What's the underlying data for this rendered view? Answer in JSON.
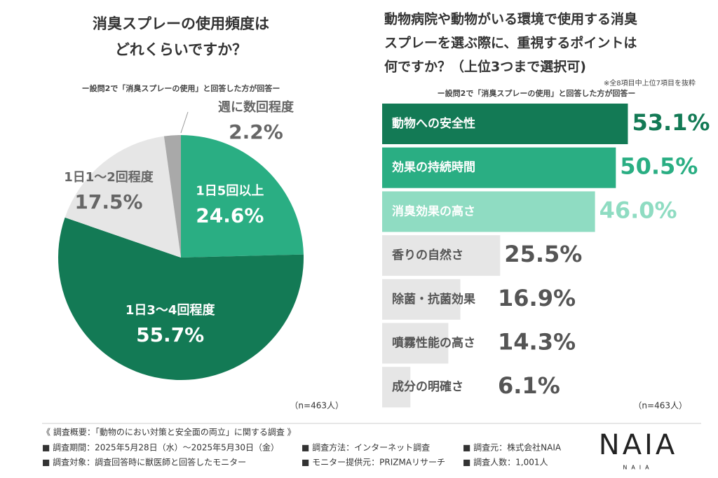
{
  "chart_data": [
    {
      "type": "pie",
      "title": [
        "消臭スプレーの使用頻度は",
        "どれくらいですか？"
      ],
      "subtitle": "ー設問2で「消臭スプレーの使用」と回答した方が回答ー",
      "categories": [
        "1日5回以上",
        "1日3〜4回程度",
        "1日1〜2回程度",
        "週に数回程度"
      ],
      "values": [
        24.6,
        55.7,
        17.5,
        2.2
      ],
      "value_labels": [
        "24.6%",
        "55.7%",
        "17.5%",
        "2.2%"
      ],
      "colors": [
        "#2aae83",
        "#137a55",
        "#e6e6e6",
        "#a9a9a9"
      ],
      "note": "（n=463人）"
    },
    {
      "type": "bar",
      "title": [
        "動物病院や動物がいる環境で使用する消臭",
        "スプレーを選ぶ際に、重視するポイントは",
        "何ですか？（上位3つまで選択可)"
      ],
      "annotation": "※全8項目中上位7項目を抜粋",
      "subtitle": "ー設問2で「消臭スプレーの使用」と回答した方が回答ー",
      "categories": [
        "動物への安全性",
        "効果の持続時間",
        "消臭効果の高さ",
        "香りの自然さ",
        "除菌・抗菌効果",
        "噴霧性能の高さ",
        "成分の明確さ"
      ],
      "values": [
        53.1,
        50.5,
        46.0,
        25.5,
        16.9,
        14.3,
        6.1
      ],
      "value_labels": [
        "53.1%",
        "50.5%",
        "46.0%",
        "25.5%",
        "16.9%",
        "14.3%",
        "6.1%"
      ],
      "colors": [
        "#137a55",
        "#2aae83",
        "#8fdcc2",
        "#e6e6e6",
        "#e6e6e6",
        "#e6e6e6",
        "#e6e6e6"
      ],
      "note": "（n=463人）"
    }
  ],
  "footer": {
    "survey_title": "《 調査概要：「動物のにおい対策と安全面の両立」に関する調査 》",
    "items": [
      "■ 調査期間：2025年5月28日（水）〜2025年5月30日（金）",
      "■ 調査方法：インターネット調査",
      "■ 調査元：株式会社NAIA",
      "■ 調査対象：調査回答時に獣医師と回答したモニター",
      "■ モニター提供元：PRIZMAリサーチ",
      "■ 調査人数：1,001人"
    ],
    "logo": "NAIA"
  }
}
